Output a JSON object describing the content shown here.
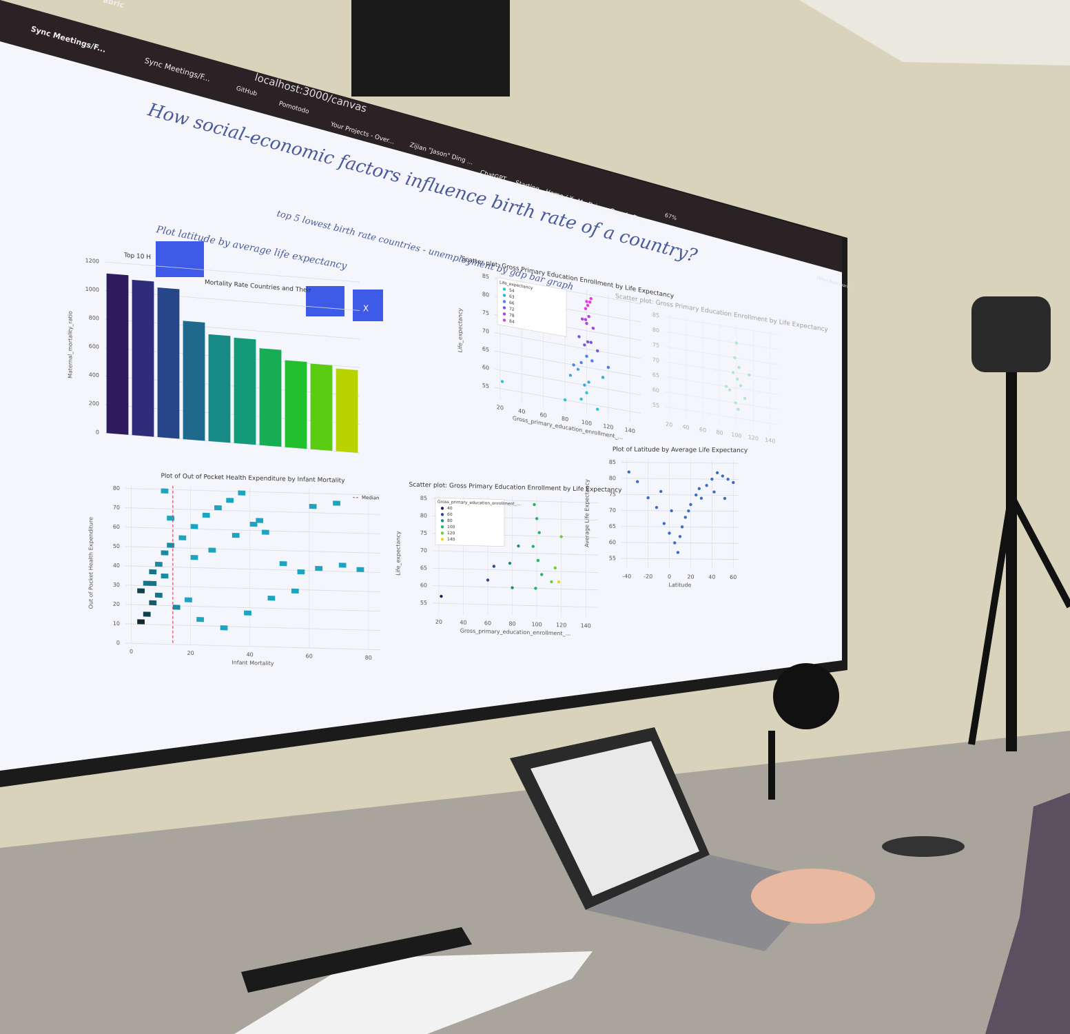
{
  "browser": {
    "tab": "Sync Meetings/F...",
    "tab_partial": "abric",
    "url": "localhost:3000/canvas",
    "zoom": "67%",
    "bookmarks": [
      "Sync Meetings/F...",
      "GitHub",
      "Pomotodo",
      "Your Projects - Over...",
      "Zijian \"Jason\" Ding ...",
      "ChatGPT",
      "Starting",
      "Home / X",
      "My Drive - Google D..."
    ],
    "other_bookmarks": "Other Bookmarks"
  },
  "page": {
    "title": "How social-economic factors influence birth rate of a country?",
    "note_1": "top 5 lowest birth rate countries - unemployment by gdp bar graph",
    "note_2": "Plot latitude by average life expectancy",
    "close_button": "X"
  },
  "chart_data": [
    {
      "type": "bar",
      "title": "Top 10 H",
      "title_rest": "Mortality Rate Countries and Their",
      "ylabel": "Maternal_mortality_ratio",
      "categories": [
        null,
        null,
        null,
        null,
        null,
        null,
        null,
        null,
        null,
        null
      ],
      "values": [
        1120,
        1090,
        1050,
        830,
        750,
        740,
        680,
        610,
        600,
        580
      ],
      "colors": [
        "#2f1b5e",
        "#2d2d7a",
        "#27468a",
        "#1f6a8c",
        "#178a86",
        "#149a78",
        "#16ad55",
        "#22c02e",
        "#5acc12",
        "#b8d400"
      ],
      "ylim": [
        0,
        1200
      ],
      "yticks": [
        0,
        200,
        400,
        600,
        800,
        1000,
        1200
      ],
      "grid": true
    },
    {
      "type": "scatter",
      "title": "Scatter plot: Gross Primary Education Enrollment by Life Expectancy",
      "xlabel": "Gross_primary_education_enrollment_...",
      "ylabel": "Life_expectancy",
      "legend_title": "Life_expectancy",
      "legend": "top-left",
      "series": [
        {
          "name": "54",
          "color": "#2ec4d8",
          "x": [
            22,
            80,
            95,
            110,
            100
          ],
          "y": [
            57,
            55,
            56,
            54,
            58
          ]
        },
        {
          "name": "63",
          "color": "#3fa8e0",
          "x": [
            85,
            102,
            92,
            115,
            98
          ],
          "y": [
            62,
            61,
            64,
            63,
            60
          ]
        },
        {
          "name": "66",
          "color": "#5080e6",
          "x": [
            95,
            105,
            88,
            120,
            100
          ],
          "y": [
            66,
            67,
            65,
            66,
            68
          ]
        },
        {
          "name": "72",
          "color": "#7a55e0",
          "x": [
            98,
            104,
            110,
            93,
            101
          ],
          "y": [
            71,
            72,
            70,
            73,
            72
          ]
        },
        {
          "name": "78",
          "color": "#b040e0",
          "x": [
            100,
            96,
            106,
            102,
            99
          ],
          "y": [
            77,
            78,
            76,
            79,
            78
          ]
        },
        {
          "name": "84",
          "color": "#e040d8",
          "x": [
            101,
            103,
            99,
            104,
            100
          ],
          "y": [
            82,
            83,
            81,
            84,
            83
          ]
        }
      ],
      "xlim": [
        15,
        150
      ],
      "ylim": [
        52,
        86
      ],
      "xticks": [
        20,
        40,
        60,
        80,
        100,
        120,
        140
      ],
      "yticks": [
        55,
        60,
        65,
        70,
        75,
        80,
        85
      ]
    },
    {
      "type": "scatter",
      "title": "Scatter plot: Gross Primary Education Enrollment by Life Expectancy",
      "series": [
        {
          "name": null,
          "color": "#66d68a",
          "x": [
            100,
            98,
            103,
            96,
            101,
            105,
            92,
            110,
            99,
            102,
            88,
            115
          ],
          "y": [
            80,
            75,
            72,
            70,
            68,
            66,
            64,
            62,
            60,
            58,
            65,
            70
          ]
        }
      ],
      "xlim": [
        15,
        150
      ],
      "ylim": [
        52,
        86
      ],
      "xticks": [
        20,
        40,
        60,
        80,
        100,
        120,
        140
      ],
      "yticks": [
        55,
        60,
        65,
        70,
        75,
        80,
        85
      ]
    },
    {
      "type": "heatmap",
      "title": "Plot of Out of Pocket Health Expenditure by Infant Mortality",
      "xlabel": "Infant Mortality",
      "ylabel": "Out of Pocket Health Expenditure",
      "median_label": "Median",
      "median": 14,
      "x": [
        2,
        4,
        6,
        8,
        4,
        6,
        8,
        10,
        12,
        16,
        20,
        24,
        28,
        32,
        36,
        40,
        44,
        50,
        56,
        62,
        70,
        76,
        2,
        6,
        10,
        14,
        18,
        22,
        30,
        38,
        46,
        54,
        10,
        12,
        20,
        26,
        34,
        42,
        60,
        68
      ],
      "y": [
        10,
        14,
        20,
        24,
        30,
        36,
        40,
        46,
        50,
        54,
        60,
        66,
        70,
        74,
        78,
        62,
        58,
        42,
        38,
        40,
        42,
        40,
        26,
        30,
        34,
        18,
        22,
        12,
        8,
        16,
        24,
        28,
        78,
        64,
        44,
        48,
        56,
        64,
        72,
        74
      ],
      "counts": [
        6,
        5,
        4,
        3,
        3,
        3,
        2,
        2,
        2,
        1,
        1,
        1,
        1,
        1,
        1,
        1,
        1,
        1,
        1,
        1,
        1,
        1,
        5,
        3,
        2,
        2,
        1,
        1,
        1,
        1,
        1,
        1,
        1,
        1,
        1,
        1,
        1,
        1,
        1,
        1
      ],
      "xlim": [
        -2,
        84
      ],
      "ylim": [
        0,
        82
      ],
      "xticks": [
        0,
        20,
        40,
        60,
        80
      ],
      "yticks": [
        0,
        10,
        20,
        30,
        40,
        50,
        60,
        70,
        80
      ],
      "grid": true
    },
    {
      "type": "scatter",
      "title": "Scatter plot: Gross Primary Education Enrollment by Life Expectancy",
      "xlabel": "Gross_primary_education_enrollment_...",
      "ylabel": "Life_expectancy",
      "legend_title": "Gross_primary_education_enrollment_...",
      "legend": "top-left",
      "series": [
        {
          "name": "40",
          "color": "#2b1d5a",
          "x": [
            22
          ],
          "y": [
            57
          ]
        },
        {
          "name": "60",
          "color": "#2c4d8a",
          "x": [
            60,
            65
          ],
          "y": [
            62,
            66
          ]
        },
        {
          "name": "80",
          "color": "#1f8a8a",
          "x": [
            80,
            78,
            85
          ],
          "y": [
            60,
            67,
            72
          ]
        },
        {
          "name": "100",
          "color": "#25b26a",
          "x": [
            98,
            100,
            102,
            97,
            101,
            104,
            99
          ],
          "y": [
            84,
            80,
            76,
            72,
            68,
            64,
            60
          ]
        },
        {
          "name": "120",
          "color": "#6ccd3a",
          "x": [
            115,
            120,
            112
          ],
          "y": [
            66,
            75,
            62
          ]
        },
        {
          "name": "140",
          "color": "#e8d820",
          "x": [
            118
          ],
          "y": [
            62
          ]
        }
      ],
      "xlim": [
        15,
        150
      ],
      "ylim": [
        52,
        86
      ],
      "xticks": [
        20,
        40,
        60,
        80,
        100,
        120,
        140
      ],
      "yticks": [
        55,
        60,
        65,
        70,
        75,
        80,
        85
      ]
    },
    {
      "type": "scatter",
      "title": "Plot of Latitude by Average Life Expectancy",
      "xlabel": "Latitude",
      "ylabel": "Average Life Expectancy",
      "series": [
        {
          "name": null,
          "color": "#3a6cc8",
          "x": [
            -38,
            -30,
            -20,
            -12,
            -5,
            0,
            5,
            10,
            15,
            20,
            25,
            30,
            35,
            40,
            45,
            50,
            55,
            60,
            8,
            12,
            18,
            -8,
            2,
            28,
            42,
            52
          ],
          "y": [
            82,
            79,
            74,
            71,
            66,
            63,
            60,
            62,
            68,
            72,
            75,
            74,
            78,
            80,
            82,
            81,
            80,
            79,
            57,
            65,
            70,
            76,
            70,
            77,
            76,
            74
          ]
        }
      ],
      "xlim": [
        -45,
        65
      ],
      "ylim": [
        52,
        86
      ],
      "xticks": [
        -40,
        -20,
        0,
        20,
        40,
        60
      ],
      "yticks": [
        55,
        60,
        65,
        70,
        75,
        80,
        85
      ]
    }
  ]
}
